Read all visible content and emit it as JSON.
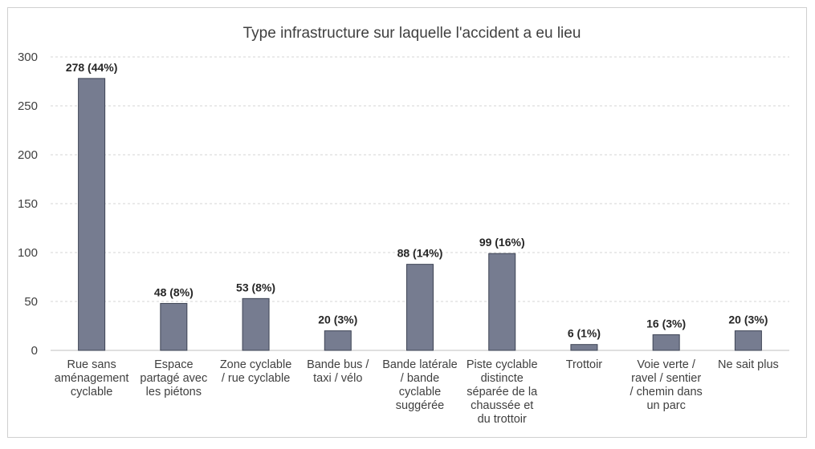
{
  "chart_data": {
    "type": "bar",
    "title": "Type infrastructure sur laquelle l'accident a eu lieu",
    "xlabel": "",
    "ylabel": "",
    "ylim": [
      0,
      300
    ],
    "yticks": [
      0,
      50,
      100,
      150,
      200,
      250,
      300
    ],
    "grid": true,
    "legend": "none",
    "bar_color": "#767c90",
    "categories": [
      [
        "Rue sans",
        "aménagement",
        "cyclable"
      ],
      [
        "Espace",
        "partagé avec",
        "les piétons"
      ],
      [
        "Zone cyclable",
        "/ rue cyclable"
      ],
      [
        "Bande bus /",
        "taxi / vélo"
      ],
      [
        "Bande latérale",
        "/ bande",
        "cyclable",
        "suggérée"
      ],
      [
        "Piste cyclable",
        "distincte",
        "séparée de la",
        "chaussée et",
        "du trottoir"
      ],
      [
        "Trottoir"
      ],
      [
        "Voie verte /",
        "ravel / sentier",
        "/ chemin dans",
        "un parc"
      ],
      [
        "Ne sait plus"
      ]
    ],
    "values": [
      278,
      48,
      53,
      20,
      88,
      99,
      6,
      16,
      20
    ],
    "data_labels": [
      "278 (44%)",
      "48 (8%)",
      "53 (8%)",
      "20 (3%)",
      "88 (14%)",
      "99 (16%)",
      "6 (1%)",
      "16 (3%)",
      "20 (3%)"
    ]
  }
}
